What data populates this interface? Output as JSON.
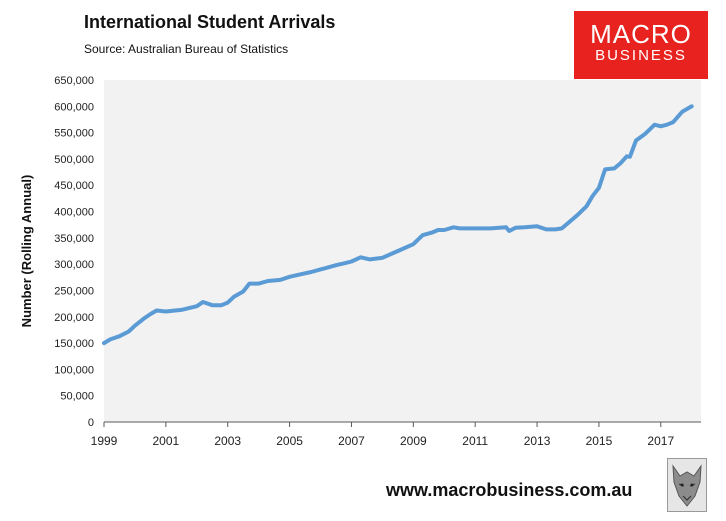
{
  "header": {
    "title": "International Student Arrivals",
    "subtitle": "Source: Australian Bureau of Statistics"
  },
  "logo": {
    "line1": "MACRO",
    "line2": "BUSINESS",
    "color": "#e8221f"
  },
  "footer": {
    "url": "www.macrobusiness.com.au"
  },
  "colors": {
    "plot_bg": "#f2f2f2",
    "line": "#5b9bd5"
  },
  "chart_data": {
    "type": "line",
    "ylabel": "Number (Rolling Annual)",
    "ylim": [
      0,
      650000
    ],
    "xlim": [
      1999,
      2018.3
    ],
    "y_ticks": [
      0,
      50000,
      100000,
      150000,
      200000,
      250000,
      300000,
      350000,
      400000,
      450000,
      500000,
      550000,
      600000,
      650000
    ],
    "y_tick_labels": [
      "0",
      "50,000",
      "100,000",
      "150,000",
      "200,000",
      "250,000",
      "300,000",
      "350,000",
      "400,000",
      "450,000",
      "500,000",
      "550,000",
      "600,000",
      "650,000"
    ],
    "x_ticks": [
      1999,
      2001,
      2003,
      2005,
      2007,
      2009,
      2011,
      2013,
      2015,
      2017
    ],
    "x_tick_labels": [
      "1999",
      "2001",
      "2003",
      "2005",
      "2007",
      "2009",
      "2011",
      "2013",
      "2015",
      "2017"
    ],
    "grid": false,
    "legend": "none",
    "series": [
      {
        "x": [
          1999.0,
          1999.2,
          1999.5,
          1999.8,
          2000.0,
          2000.3,
          2000.5,
          2000.7,
          2001.0,
          2001.3,
          2001.5,
          2001.7,
          2002.0,
          2002.2,
          2002.5,
          2002.8,
          2003.0,
          2003.2,
          2003.5,
          2003.7,
          2004.0,
          2004.3,
          2004.7,
          2005.0,
          2005.3,
          2005.7,
          2006.0,
          2006.2,
          2006.5,
          2006.8,
          2007.0,
          2007.3,
          2007.6,
          2008.0,
          2008.5,
          2009.0,
          2009.3,
          2009.6,
          2009.8,
          2010.0,
          2010.3,
          2010.5,
          2011.0,
          2011.5,
          2012.0,
          2012.1,
          2012.3,
          2012.6,
          2013.0,
          2013.3,
          2013.6,
          2013.8,
          2014.0,
          2014.3,
          2014.6,
          2014.8,
          2015.0,
          2015.2,
          2015.5,
          2015.7,
          2015.9,
          2016.0,
          2016.2,
          2016.5,
          2016.8,
          2017.0,
          2017.2,
          2017.4,
          2017.7,
          2018.0
        ],
        "values": [
          150000,
          157000,
          163000,
          172000,
          183000,
          197000,
          205000,
          212000,
          210000,
          212000,
          213000,
          216000,
          220000,
          228000,
          222000,
          222000,
          227000,
          238000,
          248000,
          263000,
          263000,
          268000,
          270000,
          276000,
          280000,
          285000,
          290000,
          293000,
          298000,
          302000,
          305000,
          313000,
          309000,
          312000,
          325000,
          338000,
          355000,
          360000,
          365000,
          365000,
          370000,
          368000,
          368000,
          368000,
          370000,
          363000,
          369000,
          370000,
          372000,
          366000,
          366000,
          368000,
          378000,
          393000,
          410000,
          430000,
          445000,
          480000,
          482000,
          492000,
          505000,
          504000,
          535000,
          548000,
          565000,
          562000,
          565000,
          570000,
          590000,
          600000
        ]
      }
    ]
  }
}
